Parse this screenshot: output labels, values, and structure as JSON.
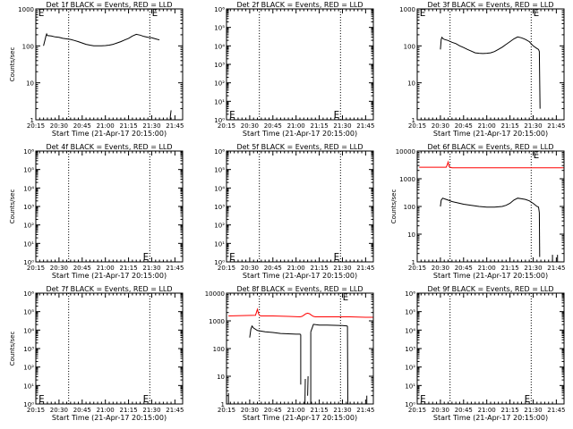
{
  "chart_data": [
    {
      "type": "line",
      "title": "Det 1f BLACK = Events, RED = LLD",
      "xlabel": "Start Time (21-Apr-17 20:15:00)",
      "ylabel": "Counts/sec",
      "xlim": [
        0,
        38
      ],
      "ylim": [
        1,
        1000
      ],
      "log_y": true,
      "xtick_labels": [
        "20:15",
        "20:30",
        "20:45",
        "21:00",
        "21:15",
        "21:30",
        "21:45"
      ],
      "ytick_labels": [
        "1",
        "10",
        "100",
        "1000"
      ],
      "ytick_values": [
        1,
        10,
        100,
        1000
      ],
      "vlines": [
        8.5,
        29.5
      ],
      "e_markers": [
        {
          "x": 0.4,
          "y": 1000
        },
        {
          "x": 29.8,
          "y": 1000
        }
      ],
      "series": [
        {
          "color": "#000000",
          "x": [
            2.0,
            2.4,
            2.6,
            2.8,
            3.0,
            4,
            5,
            6,
            7,
            8,
            9,
            10,
            11,
            12,
            13,
            14,
            15,
            16,
            17,
            18,
            19,
            20,
            21,
            22,
            23,
            24,
            25,
            26,
            27,
            28,
            29,
            30,
            31,
            32
          ],
          "y": [
            100,
            150,
            180,
            210,
            190,
            185,
            175,
            170,
            160,
            155,
            150,
            140,
            130,
            120,
            110,
            105,
            100,
            100,
            100,
            102,
            105,
            110,
            120,
            130,
            145,
            160,
            185,
            205,
            195,
            180,
            170,
            165,
            155,
            145
          ]
        },
        {
          "color": "#000000",
          "x": [
            34.8,
            34.8,
            35.0
          ],
          "y": [
            1,
            1.2,
            1.8
          ]
        }
      ]
    },
    {
      "type": "line",
      "title": "Det 2f BLACK = Events, RED = LLD",
      "xlabel": "Start Time (21-Apr-17 20:15:00)",
      "ylabel": "",
      "xlim": [
        0,
        38
      ],
      "ylim": [
        1,
        1000000
      ],
      "log_y": true,
      "xtick_labels": [
        "20:15",
        "20:30",
        "20:45",
        "21:00",
        "21:15",
        "21:30",
        "21:45"
      ],
      "ytick_labels": [
        "10⁰",
        "10¹",
        "10²",
        "10³",
        "10⁴",
        "10⁵",
        "10⁶"
      ],
      "ytick_values": [
        1,
        10,
        100,
        1000,
        10000,
        100000,
        1000000
      ],
      "vlines": [
        8.5,
        29.5
      ],
      "e_markers": [
        {
          "x": 0.5,
          "y": 2
        },
        {
          "x": 27.5,
          "y": 2
        }
      ],
      "series": []
    },
    {
      "type": "line",
      "title": "Det 3f BLACK = Events, RED = LLD",
      "xlabel": "Start Time (21-Apr-17 20:15:00)",
      "ylabel": "",
      "xlim": [
        0,
        38
      ],
      "ylim": [
        1,
        1000
      ],
      "log_y": true,
      "xtick_labels": [
        "20:15",
        "20:30",
        "20:45",
        "21:00",
        "21:15",
        "21:30",
        "21:45"
      ],
      "ytick_labels": [
        "1",
        "10",
        "100",
        "1000"
      ],
      "ytick_values": [
        1,
        10,
        100,
        1000
      ],
      "vlines": [
        8.5,
        29.5
      ],
      "e_markers": [
        {
          "x": 0.4,
          "y": 1000
        },
        {
          "x": 29.8,
          "y": 1000
        }
      ],
      "series": [
        {
          "color": "#000000",
          "x": [
            6.0,
            6.2,
            6.4,
            6.6,
            7,
            8,
            9,
            10,
            11,
            12,
            13,
            14,
            15,
            16,
            17,
            18,
            19,
            20,
            21,
            22,
            23,
            24,
            25,
            26,
            27,
            28,
            29,
            30,
            31,
            31.4,
            31.6,
            31.8
          ],
          "y": [
            80,
            150,
            170,
            160,
            150,
            140,
            125,
            115,
            100,
            90,
            80,
            72,
            65,
            63,
            62,
            63,
            65,
            70,
            80,
            92,
            110,
            130,
            155,
            175,
            165,
            150,
            130,
            100,
            85,
            80,
            70,
            2
          ]
        }
      ]
    },
    {
      "type": "line",
      "title": "Det 4f BLACK = Events, RED = LLD",
      "xlabel": "Start Time (21-Apr-17 20:15:00)",
      "ylabel": "Counts/sec",
      "xlim": [
        0,
        38
      ],
      "ylim": [
        1,
        1000000
      ],
      "log_y": true,
      "xtick_labels": [
        "20:15",
        "20:30",
        "20:45",
        "21:00",
        "21:15",
        "21:30",
        "21:45"
      ],
      "ytick_labels": [
        "10⁰",
        "10¹",
        "10²",
        "10³",
        "10⁴",
        "10⁵",
        "10⁶"
      ],
      "ytick_values": [
        1,
        10,
        100,
        1000,
        10000,
        100000,
        1000000
      ],
      "vlines": [
        8.5,
        29.5
      ],
      "e_markers": [
        {
          "x": 27.5,
          "y": 2
        }
      ],
      "series": []
    },
    {
      "type": "line",
      "title": "Det 5f BLACK = Events, RED = LLD",
      "xlabel": "Start Time (21-Apr-17 20:15:00)",
      "ylabel": "",
      "xlim": [
        0,
        38
      ],
      "ylim": [
        1,
        1000000
      ],
      "log_y": true,
      "xtick_labels": [
        "20:15",
        "20:30",
        "20:45",
        "21:00",
        "21:15",
        "21:30",
        "21:45"
      ],
      "ytick_labels": [
        "10⁰",
        "10¹",
        "10²",
        "10³",
        "10⁴",
        "10⁵",
        "10⁶"
      ],
      "ytick_values": [
        1,
        10,
        100,
        1000,
        10000,
        100000,
        1000000
      ],
      "vlines": [
        8.5,
        29.5
      ],
      "e_markers": [
        {
          "x": 0.5,
          "y": 2
        },
        {
          "x": 27.5,
          "y": 2
        }
      ],
      "series": []
    },
    {
      "type": "line",
      "title": "Det 6f BLACK = Events, RED = LLD",
      "xlabel": "Start Time (21-Apr-17 20:15:00)",
      "ylabel": "Counts/sec",
      "xlim": [
        0,
        38
      ],
      "ylim": [
        1,
        10000
      ],
      "log_y": true,
      "xtick_labels": [
        "20:15",
        "20:30",
        "20:45",
        "21:00",
        "21:15",
        "21:30",
        "21:45"
      ],
      "ytick_labels": [
        "1",
        "10",
        "100",
        "1000",
        "10000"
      ],
      "ytick_values": [
        1,
        10,
        100,
        1000,
        10000
      ],
      "vlines": [
        8.5,
        29.5
      ],
      "e_markers": [
        {
          "x": 29.8,
          "y": 10000
        }
      ],
      "series": [
        {
          "color": "#ff0000",
          "x": [
            0.5,
            5,
            7.5,
            7.8,
            8.0,
            8.3,
            9,
            12,
            16,
            20,
            24,
            28,
            32,
            36,
            38
          ],
          "y": [
            2600,
            2600,
            2600,
            3300,
            4000,
            2700,
            2500,
            2500,
            2500,
            2500,
            2500,
            2500,
            2500,
            2500,
            2500
          ]
        },
        {
          "color": "#000000",
          "x": [
            6.0,
            6.2,
            6.6,
            7,
            8,
            9,
            10,
            12,
            14,
            16,
            18,
            20,
            22,
            23,
            24,
            25,
            26,
            27,
            28,
            29,
            30,
            31,
            31.4,
            31.6
          ],
          "y": [
            100,
            170,
            200,
            190,
            170,
            150,
            140,
            120,
            110,
            100,
            95,
            95,
            100,
            110,
            130,
            170,
            200,
            190,
            180,
            160,
            130,
            100,
            95,
            60
          ]
        },
        {
          "color": "#000000",
          "x": [
            31.6,
            31.7
          ],
          "y": [
            60,
            1.5
          ]
        },
        {
          "color": "#000000",
          "x": [
            35.0,
            35.0
          ],
          "y": [
            1,
            1.8
          ]
        },
        {
          "color": "#000000",
          "x": [
            36.3,
            36.3
          ],
          "y": [
            1,
            1.8
          ]
        }
      ]
    },
    {
      "type": "line",
      "title": "Det 7f BLACK = Events, RED = LLD",
      "xlabel": "Start Time (21-Apr-17 20:15:00)",
      "ylabel": "Counts/sec",
      "xlim": [
        0,
        38
      ],
      "ylim": [
        1,
        1000000
      ],
      "log_y": true,
      "xtick_labels": [
        "20:15",
        "20:30",
        "20:45",
        "21:00",
        "21:15",
        "21:30",
        "21:45"
      ],
      "ytick_labels": [
        "10⁰",
        "10¹",
        "10²",
        "10³",
        "10⁴",
        "10⁵",
        "10⁶"
      ],
      "ytick_values": [
        1,
        10,
        100,
        1000,
        10000,
        100000,
        1000000
      ],
      "vlines": [
        8.5,
        29.5
      ],
      "e_markers": [
        {
          "x": 0.5,
          "y": 2
        },
        {
          "x": 27.5,
          "y": 2
        }
      ],
      "series": []
    },
    {
      "type": "line",
      "title": "Det 8f BLACK = Events, RED = LLD",
      "xlabel": "Start Time (21-Apr-17 20:15:00)",
      "ylabel": "",
      "xlim": [
        0,
        38
      ],
      "ylim": [
        1,
        10000
      ],
      "log_y": true,
      "xtick_labels": [
        "20:15",
        "20:30",
        "20:45",
        "21:00",
        "21:15",
        "21:30",
        "21:45"
      ],
      "ytick_labels": [
        "1",
        "10",
        "100",
        "1000",
        "10000"
      ],
      "ytick_values": [
        1,
        10,
        100,
        1000,
        10000
      ],
      "vlines": [
        8.5,
        29.5
      ],
      "e_markers": [
        {
          "x": 29.8,
          "y": 10000
        }
      ],
      "series": [
        {
          "color": "#ff0000",
          "x": [
            0.5,
            4,
            7.5,
            8.0,
            8.3,
            8.6,
            9,
            12,
            16,
            19,
            19.5,
            20,
            20.5,
            21,
            21.5,
            22,
            22.5,
            23,
            24,
            28,
            32,
            36,
            38
          ],
          "y": [
            1500,
            1550,
            1600,
            2600,
            1800,
            1550,
            1500,
            1500,
            1450,
            1400,
            1450,
            1600,
            1800,
            1900,
            1800,
            1600,
            1450,
            1400,
            1400,
            1400,
            1400,
            1350,
            1350
          ]
        },
        {
          "color": "#000000",
          "x": [
            6.0,
            6.3,
            6.6,
            7,
            8,
            10,
            12,
            14,
            16,
            18,
            19,
            19.2
          ],
          "y": [
            250,
            500,
            650,
            550,
            450,
            400,
            380,
            350,
            340,
            330,
            330,
            320
          ]
        },
        {
          "color": "#000000",
          "x": [
            19.2,
            19.2
          ],
          "y": [
            320,
            5
          ]
        },
        {
          "color": "#000000",
          "x": [
            20.3,
            20.4
          ],
          "y": [
            1,
            8
          ]
        },
        {
          "color": "#000000",
          "x": [
            21.0,
            21.1
          ],
          "y": [
            2,
            10
          ]
        },
        {
          "color": "#000000",
          "x": [
            21.8,
            21.8
          ],
          "y": [
            1,
            400
          ]
        },
        {
          "color": "#000000",
          "x": [
            21.8,
            22.5,
            24,
            26,
            28,
            30,
            31.3
          ],
          "y": [
            400,
            750,
            700,
            700,
            690,
            680,
            650
          ]
        },
        {
          "color": "#000000",
          "x": [
            31.3,
            31.4
          ],
          "y": [
            650,
            1
          ]
        },
        {
          "color": "#000000",
          "x": [
            0.5,
            0.5
          ],
          "y": [
            1,
            2.5
          ]
        },
        {
          "color": "#000000",
          "x": [
            36.3,
            36.3
          ],
          "y": [
            1,
            2.0
          ]
        }
      ]
    },
    {
      "type": "line",
      "title": "Det 9f BLACK = Events, RED = LLD",
      "xlabel": "Start Time (21-Apr-17 20:15:00)",
      "ylabel": "",
      "xlim": [
        0,
        38
      ],
      "ylim": [
        1,
        1000000
      ],
      "log_y": true,
      "xtick_labels": [
        "20:15",
        "20:30",
        "20:45",
        "21:00",
        "21:15",
        "21:30",
        "21:45"
      ],
      "ytick_labels": [
        "10⁰",
        "10¹",
        "10²",
        "10³",
        "10⁴",
        "10⁵",
        "10⁶"
      ],
      "ytick_values": [
        1,
        10,
        100,
        1000,
        10000,
        100000,
        1000000
      ],
      "vlines": [
        8.5,
        29.5
      ],
      "e_markers": [
        {
          "x": 0.5,
          "y": 2
        },
        {
          "x": 27.5,
          "y": 2
        }
      ],
      "series": []
    }
  ]
}
